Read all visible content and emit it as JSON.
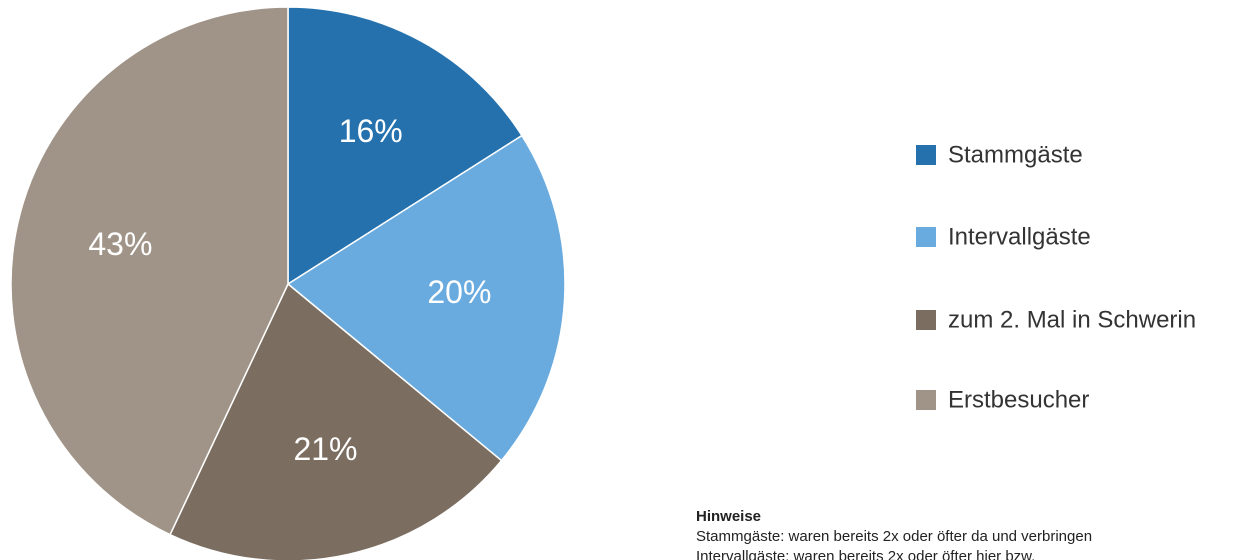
{
  "chart_data": {
    "type": "pie",
    "categories": [
      "Stammgäste",
      "Intervallgäste",
      "zum 2. Mal in Schwerin",
      "Erstbesucher"
    ],
    "values": [
      16,
      20,
      21,
      43
    ],
    "value_labels": [
      "16%",
      "20%",
      "21%",
      "43%"
    ],
    "colors": [
      "#2471ad",
      "#6aabdf",
      "#7b6d60",
      "#a09488"
    ]
  },
  "notes": {
    "title": "Hinweise",
    "lines": [
      "Stammgäste: waren bereits 2x oder öfter da und verbringen",
      "Intervallgäste: waren bereits 2x oder öfter hier bzw."
    ]
  }
}
